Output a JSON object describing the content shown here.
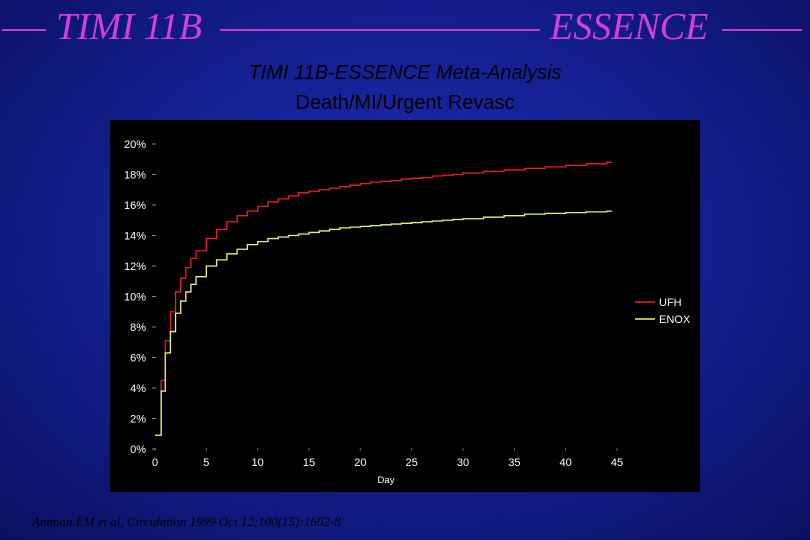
{
  "header": {
    "left_title": "TIMI 11B",
    "right_title": "ESSENCE",
    "line_color": "#c23fc4",
    "title_color": "#d23ee0"
  },
  "slide": {
    "title_line1": "TIMI 11B-ESSENCE Meta-Analysis",
    "title_line2": "Death/MI/Urgent Revasc",
    "citation": "Antman EM et al, Circulation 1999 Oct 12;100(15):1602-8"
  },
  "chart_data": {
    "type": "line",
    "step": true,
    "xlabel": "Day",
    "ylabel": "",
    "xlim": [
      0,
      45
    ],
    "ylim": [
      0,
      20
    ],
    "xticks": [
      0,
      5,
      10,
      15,
      20,
      25,
      30,
      35,
      40,
      45
    ],
    "yticks": [
      0,
      2,
      4,
      6,
      8,
      10,
      12,
      14,
      16,
      18,
      20
    ],
    "ytick_labels": [
      "0%",
      "2%",
      "4%",
      "6%",
      "8%",
      "10%",
      "12%",
      "14%",
      "16%",
      "18%",
      "20%"
    ],
    "legend_position": "right",
    "series": [
      {
        "name": "UFH",
        "color": "#e8202a",
        "x": [
          0,
          0.6,
          1,
          1.5,
          2,
          2.5,
          3,
          3.5,
          4,
          5,
          6,
          7,
          8,
          9,
          10,
          11,
          12,
          13,
          14,
          15,
          16,
          17,
          18,
          19,
          20,
          21,
          22,
          23,
          24,
          25,
          26,
          27,
          28,
          29,
          30,
          32,
          34,
          36,
          38,
          40,
          42,
          44
        ],
        "y": [
          0.9,
          4.5,
          7.1,
          9.0,
          10.3,
          11.2,
          11.9,
          12.5,
          13.0,
          13.8,
          14.4,
          14.9,
          15.3,
          15.6,
          15.9,
          16.2,
          16.4,
          16.6,
          16.8,
          16.9,
          17.0,
          17.1,
          17.2,
          17.3,
          17.4,
          17.5,
          17.55,
          17.6,
          17.7,
          17.75,
          17.8,
          17.9,
          17.95,
          18.0,
          18.1,
          18.2,
          18.3,
          18.4,
          18.5,
          18.6,
          18.7,
          18.8
        ]
      },
      {
        "name": "ENOX",
        "color": "#eef07a",
        "x": [
          0,
          0.6,
          1,
          1.5,
          2,
          2.5,
          3,
          3.5,
          4,
          5,
          6,
          7,
          8,
          9,
          10,
          11,
          12,
          13,
          14,
          15,
          16,
          17,
          18,
          19,
          20,
          21,
          22,
          23,
          24,
          25,
          26,
          27,
          28,
          29,
          30,
          32,
          34,
          36,
          38,
          40,
          42,
          44
        ],
        "y": [
          0.9,
          3.8,
          6.3,
          7.7,
          8.9,
          9.7,
          10.3,
          10.8,
          11.3,
          12.0,
          12.4,
          12.8,
          13.1,
          13.4,
          13.6,
          13.8,
          13.9,
          14.0,
          14.1,
          14.2,
          14.3,
          14.4,
          14.5,
          14.55,
          14.6,
          14.65,
          14.7,
          14.75,
          14.8,
          14.85,
          14.9,
          14.95,
          15.0,
          15.05,
          15.1,
          15.2,
          15.3,
          15.4,
          15.45,
          15.5,
          15.55,
          15.6
        ]
      }
    ]
  }
}
